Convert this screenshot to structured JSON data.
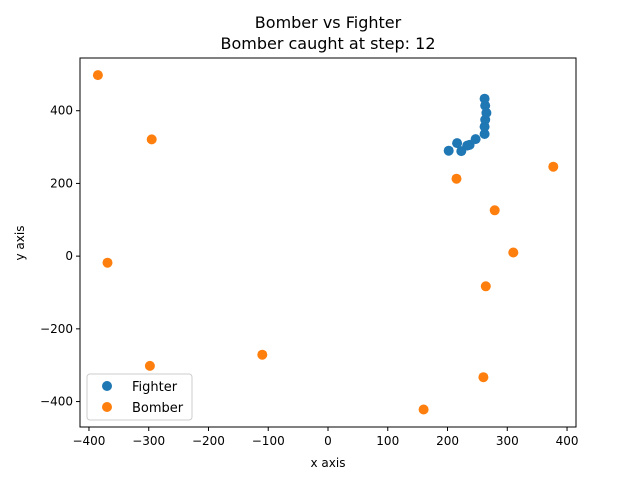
{
  "chart_data": {
    "type": "scatter",
    "title": "Bomber vs Fighter",
    "subtitle": "Bomber caught at step: 12",
    "xlabel": "x axis",
    "ylabel": "y axis",
    "xlim": [
      -415,
      415
    ],
    "ylim": [
      -470,
      545
    ],
    "xticks": [
      -400,
      -300,
      -200,
      -100,
      0,
      100,
      200,
      300,
      400
    ],
    "yticks": [
      -400,
      -200,
      0,
      200,
      400
    ],
    "grid": false,
    "legend_position": "lower-left",
    "series": [
      {
        "name": "Fighter",
        "color": "#1f77b4",
        "points": [
          [
            202,
            290
          ],
          [
            216,
            311
          ],
          [
            223,
            289
          ],
          [
            233,
            304
          ],
          [
            237,
            306
          ],
          [
            247,
            322
          ],
          [
            262,
            336
          ],
          [
            262,
            356
          ],
          [
            263,
            375
          ],
          [
            265,
            394
          ],
          [
            263,
            414
          ],
          [
            262,
            433
          ]
        ]
      },
      {
        "name": "Bomber",
        "color": "#ff7f0e",
        "points": [
          [
            -385,
            498
          ],
          [
            -295,
            321
          ],
          [
            -369,
            -18
          ],
          [
            -298,
            -302
          ],
          [
            -110,
            -271
          ],
          [
            160,
            -422
          ],
          [
            215,
            213
          ],
          [
            260,
            -333
          ],
          [
            264,
            -83
          ],
          [
            279,
            126
          ],
          [
            310,
            10
          ],
          [
            377,
            246
          ]
        ]
      }
    ]
  }
}
